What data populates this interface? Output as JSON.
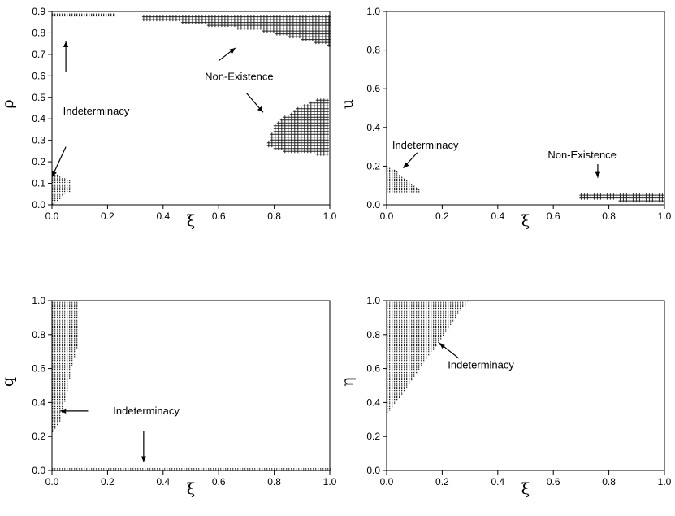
{
  "chart_data": [
    {
      "type": "scatter",
      "id": "rho",
      "xlabel": "ξ",
      "ylabel": "ρ",
      "xlim": [
        0,
        1
      ],
      "ylim": [
        0,
        0.9
      ],
      "xticks": [
        "0.0",
        "0.2",
        "0.4",
        "0.6",
        "0.8",
        "1.0"
      ],
      "yticks": [
        "0.0",
        "0.1",
        "0.2",
        "0.3",
        "0.4",
        "0.5",
        "0.6",
        "0.7",
        "0.8",
        "0.9"
      ],
      "regions": [
        {
          "label": "Indeterminacy",
          "marker": "dot",
          "points": [
            [
              0.0,
              0.0
            ],
            [
              0.0,
              0.14
            ],
            [
              0.02,
              0.14
            ],
            [
              0.05,
              0.12
            ],
            [
              0.07,
              0.12
            ],
            [
              0.07,
              0.07
            ],
            [
              0.04,
              0.05
            ],
            [
              0.02,
              0.02
            ]
          ]
        },
        {
          "label": "Indeterminacy",
          "marker": "dot",
          "points": [
            [
              0.0,
              0.88
            ],
            [
              0.0,
              0.89
            ],
            [
              0.22,
              0.89
            ],
            [
              0.22,
              0.88
            ]
          ]
        },
        {
          "label": "Non-Existence",
          "marker": "plus",
          "points": [
            [
              0.33,
              0.86
            ],
            [
              0.33,
              0.875
            ],
            [
              1.0,
              0.875
            ],
            [
              1.0,
              0.74
            ],
            [
              0.9,
              0.77
            ],
            [
              0.75,
              0.81
            ],
            [
              0.6,
              0.83
            ],
            [
              0.45,
              0.85
            ]
          ]
        },
        {
          "label": "Non-Existence",
          "marker": "plus",
          "points": [
            [
              0.78,
              0.3
            ],
            [
              0.8,
              0.37
            ],
            [
              0.88,
              0.45
            ],
            [
              0.96,
              0.49
            ],
            [
              1.0,
              0.5
            ],
            [
              1.0,
              0.23
            ],
            [
              0.9,
              0.24
            ],
            [
              0.82,
              0.25
            ],
            [
              0.78,
              0.27
            ]
          ]
        }
      ],
      "annotations": [
        {
          "text": "Indeterminacy",
          "x": 0.04,
          "y": 0.42,
          "arrows": [
            [
              0.05,
              0.62,
              0.05,
              0.76
            ],
            [
              0.05,
              0.27,
              0.0,
              0.13
            ]
          ]
        },
        {
          "text": "Non-Existence",
          "x": 0.55,
          "y": 0.58,
          "arrows": [
            [
              0.6,
              0.67,
              0.66,
              0.73
            ],
            [
              0.7,
              0.52,
              0.76,
              0.43
            ]
          ]
        }
      ]
    },
    {
      "type": "scatter",
      "id": "u",
      "xlabel": "ξ",
      "ylabel": "u",
      "xlim": [
        0,
        1
      ],
      "ylim": [
        0,
        1
      ],
      "xticks": [
        "0.0",
        "0.2",
        "0.4",
        "0.6",
        "0.8",
        "1.0"
      ],
      "yticks": [
        "0.0",
        "0.2",
        "0.4",
        "0.6",
        "0.8",
        "1.0"
      ],
      "regions": [
        {
          "label": "Indeterminacy",
          "marker": "dot",
          "points": [
            [
              0.0,
              0.07
            ],
            [
              0.0,
              0.2
            ],
            [
              0.03,
              0.18
            ],
            [
              0.07,
              0.13
            ],
            [
              0.1,
              0.1
            ],
            [
              0.12,
              0.08
            ],
            [
              0.12,
              0.07
            ]
          ]
        },
        {
          "label": "Non-Existence",
          "marker": "plus",
          "points": [
            [
              0.7,
              0.03
            ],
            [
              0.7,
              0.05
            ],
            [
              1.0,
              0.05
            ],
            [
              1.0,
              0.02
            ],
            [
              0.84,
              0.02
            ],
            [
              0.84,
              0.03
            ]
          ]
        }
      ],
      "annotations": [
        {
          "text": "Indeterminacy",
          "x": 0.02,
          "y": 0.29,
          "arrows": [
            [
              0.11,
              0.27,
              0.06,
              0.19
            ]
          ]
        },
        {
          "text": "Non-Existence",
          "x": 0.58,
          "y": 0.24,
          "arrows": [
            [
              0.76,
              0.21,
              0.76,
              0.14
            ]
          ]
        }
      ]
    },
    {
      "type": "scatter",
      "id": "q",
      "xlabel": "ξ",
      "ylabel": "q",
      "xlim": [
        0,
        1
      ],
      "ylim": [
        0,
        1
      ],
      "xticks": [
        "0.0",
        "0.2",
        "0.4",
        "0.6",
        "0.8",
        "1.0"
      ],
      "yticks": [
        "0.0",
        "0.2",
        "0.4",
        "0.6",
        "0.8",
        "1.0"
      ],
      "regions": [
        {
          "label": "Indeterminacy",
          "marker": "dot",
          "points": [
            [
              0.0,
              0.23
            ],
            [
              0.0,
              1.0
            ],
            [
              0.09,
              1.0
            ],
            [
              0.09,
              0.73
            ],
            [
              0.07,
              0.62
            ],
            [
              0.05,
              0.45
            ],
            [
              0.03,
              0.3
            ]
          ]
        },
        {
          "label": "Indeterminacy",
          "marker": "dot",
          "points": [
            [
              0.0,
              0.0
            ],
            [
              0.0,
              0.013
            ],
            [
              1.0,
              0.013
            ],
            [
              1.0,
              0.0
            ]
          ]
        }
      ],
      "annotations": [
        {
          "text": "Indeterminacy",
          "x": 0.22,
          "y": 0.33,
          "arrows": [
            [
              0.13,
              0.35,
              0.03,
              0.35
            ],
            [
              0.33,
              0.23,
              0.33,
              0.05
            ]
          ]
        }
      ]
    },
    {
      "type": "scatter",
      "id": "eta",
      "xlabel": "ξ",
      "ylabel": "η",
      "xlim": [
        0,
        1
      ],
      "ylim": [
        0,
        1
      ],
      "xticks": [
        "0.0",
        "0.2",
        "0.4",
        "0.6",
        "0.8",
        "1.0"
      ],
      "yticks": [
        "0.0",
        "0.2",
        "0.4",
        "0.6",
        "0.8",
        "1.0"
      ],
      "regions": [
        {
          "label": "Indeterminacy",
          "marker": "dot",
          "points": [
            [
              0.0,
              0.33
            ],
            [
              0.0,
              1.0
            ],
            [
              0.29,
              1.0
            ]
          ]
        }
      ],
      "annotations": [
        {
          "text": "Indeterminacy",
          "x": 0.22,
          "y": 0.6,
          "arrows": [
            [
              0.26,
              0.66,
              0.19,
              0.75
            ]
          ]
        }
      ]
    }
  ]
}
